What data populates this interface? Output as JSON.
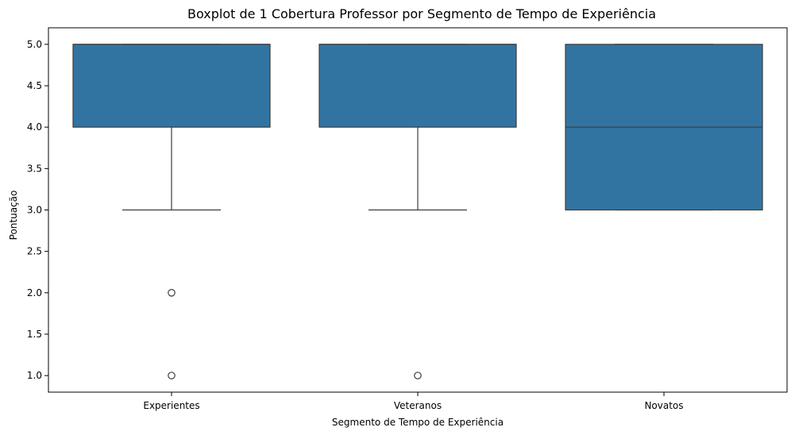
{
  "chart_data": {
    "type": "box",
    "title": "Boxplot de 1 Cobertura Professor por Segmento de Tempo de Experiência",
    "xlabel": "Segmento de Tempo de Experiência",
    "ylabel": "Pontuação",
    "ylim": [
      0.8,
      5.2
    ],
    "yticks": [
      "1.0",
      "1.5",
      "2.0",
      "2.5",
      "3.0",
      "3.5",
      "4.0",
      "4.5",
      "5.0"
    ],
    "grid": false,
    "box_color": "#3274a1",
    "line_color": "#3d3d3d",
    "categories": [
      "Experientes",
      "Veteranos",
      "Novatos"
    ],
    "boxes": [
      {
        "category": "Experientes",
        "whisker_low": 3.0,
        "q1": 4.0,
        "median": 5.0,
        "q3": 5.0,
        "whisker_high": 5.0,
        "outliers": [
          2.0,
          1.0
        ]
      },
      {
        "category": "Veteranos",
        "whisker_low": 3.0,
        "q1": 4.0,
        "median": 5.0,
        "q3": 5.0,
        "whisker_high": 5.0,
        "outliers": [
          1.0
        ]
      },
      {
        "category": "Novatos",
        "whisker_low": 3.0,
        "q1": 3.0,
        "median": 4.0,
        "q3": 5.0,
        "whisker_high": 5.0,
        "outliers": []
      }
    ]
  }
}
